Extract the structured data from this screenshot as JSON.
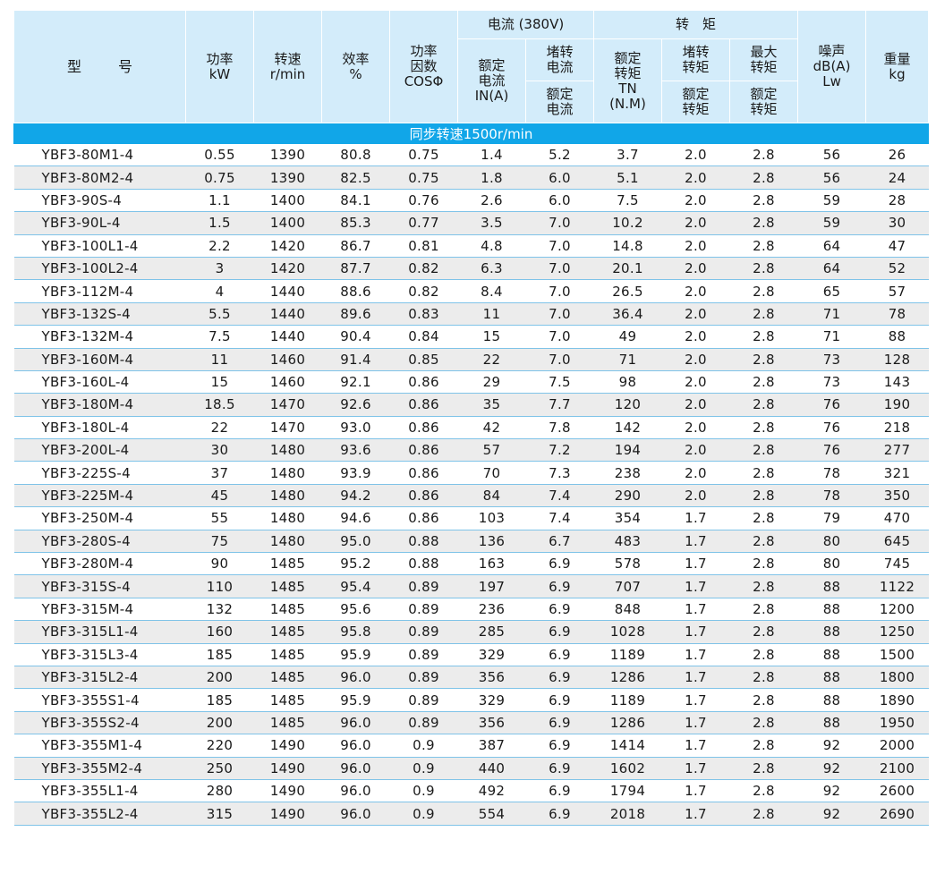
{
  "header": {
    "model": "型 号",
    "power": [
      "功率",
      "kW"
    ],
    "speed": [
      "转速",
      "r/min"
    ],
    "efficiency": [
      "效率",
      "%"
    ],
    "pf": [
      "功率",
      "因数",
      "COSΦ"
    ],
    "current_group": "电流 (380V)",
    "rated_current": [
      "额定",
      "电流",
      "IN(A)"
    ],
    "locked_current_top": [
      "堵转",
      "电流"
    ],
    "locked_current_bottom": [
      "额定",
      "电流"
    ],
    "torque_group": "转　矩",
    "rated_torque": [
      "额定",
      "转矩",
      "TN",
      "(N.M)"
    ],
    "locked_torque_top": [
      "堵转",
      "转矩"
    ],
    "locked_torque_bottom": [
      "额定",
      "转矩"
    ],
    "max_torque_top": [
      "最大",
      "转矩"
    ],
    "max_torque_bottom": [
      "额定",
      "转矩"
    ],
    "noise": [
      "噪声",
      "dB(A)",
      "Lw"
    ],
    "weight": [
      "重量",
      "kg"
    ]
  },
  "section_title": "同步转速1500r/min",
  "rows": [
    [
      "YBF3-80M1-4",
      "0.55",
      "1390",
      "80.8",
      "0.75",
      "1.4",
      "5.2",
      "3.7",
      "2.0",
      "2.8",
      "56",
      "26"
    ],
    [
      "YBF3-80M2-4",
      "0.75",
      "1390",
      "82.5",
      "0.75",
      "1.8",
      "6.0",
      "5.1",
      "2.0",
      "2.8",
      "56",
      "24"
    ],
    [
      "YBF3-90S-4",
      "1.1",
      "1400",
      "84.1",
      "0.76",
      "2.6",
      "6.0",
      "7.5",
      "2.0",
      "2.8",
      "59",
      "28"
    ],
    [
      "YBF3-90L-4",
      "1.5",
      "1400",
      "85.3",
      "0.77",
      "3.5",
      "7.0",
      "10.2",
      "2.0",
      "2.8",
      "59",
      "30"
    ],
    [
      "YBF3-100L1-4",
      "2.2",
      "1420",
      "86.7",
      "0.81",
      "4.8",
      "7.0",
      "14.8",
      "2.0",
      "2.8",
      "64",
      "47"
    ],
    [
      "YBF3-100L2-4",
      "3",
      "1420",
      "87.7",
      "0.82",
      "6.3",
      "7.0",
      "20.1",
      "2.0",
      "2.8",
      "64",
      "52"
    ],
    [
      "YBF3-112M-4",
      "4",
      "1440",
      "88.6",
      "0.82",
      "8.4",
      "7.0",
      "26.5",
      "2.0",
      "2.8",
      "65",
      "57"
    ],
    [
      "YBF3-132S-4",
      "5.5",
      "1440",
      "89.6",
      "0.83",
      "11",
      "7.0",
      "36.4",
      "2.0",
      "2.8",
      "71",
      "78"
    ],
    [
      "YBF3-132M-4",
      "7.5",
      "1440",
      "90.4",
      "0.84",
      "15",
      "7.0",
      "49",
      "2.0",
      "2.8",
      "71",
      "88"
    ],
    [
      "YBF3-160M-4",
      "11",
      "1460",
      "91.4",
      "0.85",
      "22",
      "7.0",
      "71",
      "2.0",
      "2.8",
      "73",
      "128"
    ],
    [
      "YBF3-160L-4",
      "15",
      "1460",
      "92.1",
      "0.86",
      "29",
      "7.5",
      "98",
      "2.0",
      "2.8",
      "73",
      "143"
    ],
    [
      "YBF3-180M-4",
      "18.5",
      "1470",
      "92.6",
      "0.86",
      "35",
      "7.7",
      "120",
      "2.0",
      "2.8",
      "76",
      "190"
    ],
    [
      "YBF3-180L-4",
      "22",
      "1470",
      "93.0",
      "0.86",
      "42",
      "7.8",
      "142",
      "2.0",
      "2.8",
      "76",
      "218"
    ],
    [
      "YBF3-200L-4",
      "30",
      "1480",
      "93.6",
      "0.86",
      "57",
      "7.2",
      "194",
      "2.0",
      "2.8",
      "76",
      "277"
    ],
    [
      "YBF3-225S-4",
      "37",
      "1480",
      "93.9",
      "0.86",
      "70",
      "7.3",
      "238",
      "2.0",
      "2.8",
      "78",
      "321"
    ],
    [
      "YBF3-225M-4",
      "45",
      "1480",
      "94.2",
      "0.86",
      "84",
      "7.4",
      "290",
      "2.0",
      "2.8",
      "78",
      "350"
    ],
    [
      "YBF3-250M-4",
      "55",
      "1480",
      "94.6",
      "0.86",
      "103",
      "7.4",
      "354",
      "1.7",
      "2.8",
      "79",
      "470"
    ],
    [
      "YBF3-280S-4",
      "75",
      "1480",
      "95.0",
      "0.88",
      "136",
      "6.7",
      "483",
      "1.7",
      "2.8",
      "80",
      "645"
    ],
    [
      "YBF3-280M-4",
      "90",
      "1485",
      "95.2",
      "0.88",
      "163",
      "6.9",
      "578",
      "1.7",
      "2.8",
      "80",
      "745"
    ],
    [
      "YBF3-315S-4",
      "110",
      "1485",
      "95.4",
      "0.89",
      "197",
      "6.9",
      "707",
      "1.7",
      "2.8",
      "88",
      "1122"
    ],
    [
      "YBF3-315M-4",
      "132",
      "1485",
      "95.6",
      "0.89",
      "236",
      "6.9",
      "848",
      "1.7",
      "2.8",
      "88",
      "1200"
    ],
    [
      "YBF3-315L1-4",
      "160",
      "1485",
      "95.8",
      "0.89",
      "285",
      "6.9",
      "1028",
      "1.7",
      "2.8",
      "88",
      "1250"
    ],
    [
      "YBF3-315L3-4",
      "185",
      "1485",
      "95.9",
      "0.89",
      "329",
      "6.9",
      "1189",
      "1.7",
      "2.8",
      "88",
      "1500"
    ],
    [
      "YBF3-315L2-4",
      "200",
      "1485",
      "96.0",
      "0.89",
      "356",
      "6.9",
      "1286",
      "1.7",
      "2.8",
      "88",
      "1800"
    ],
    [
      "YBF3-355S1-4",
      "185",
      "1485",
      "95.9",
      "0.89",
      "329",
      "6.9",
      "1189",
      "1.7",
      "2.8",
      "88",
      "1890"
    ],
    [
      "YBF3-355S2-4",
      "200",
      "1485",
      "96.0",
      "0.89",
      "356",
      "6.9",
      "1286",
      "1.7",
      "2.8",
      "88",
      "1950"
    ],
    [
      "YBF3-355M1-4",
      "220",
      "1490",
      "96.0",
      "0.9",
      "387",
      "6.9",
      "1414",
      "1.7",
      "2.8",
      "92",
      "2000"
    ],
    [
      "YBF3-355M2-4",
      "250",
      "1490",
      "96.0",
      "0.9",
      "440",
      "6.9",
      "1602",
      "1.7",
      "2.8",
      "92",
      "2100"
    ],
    [
      "YBF3-355L1-4",
      "280",
      "1490",
      "96.0",
      "0.9",
      "492",
      "6.9",
      "1794",
      "1.7",
      "2.8",
      "92",
      "2600"
    ],
    [
      "YBF3-355L2-4",
      "315",
      "1490",
      "96.0",
      "0.9",
      "554",
      "6.9",
      "2018",
      "1.7",
      "2.8",
      "92",
      "2690"
    ]
  ]
}
